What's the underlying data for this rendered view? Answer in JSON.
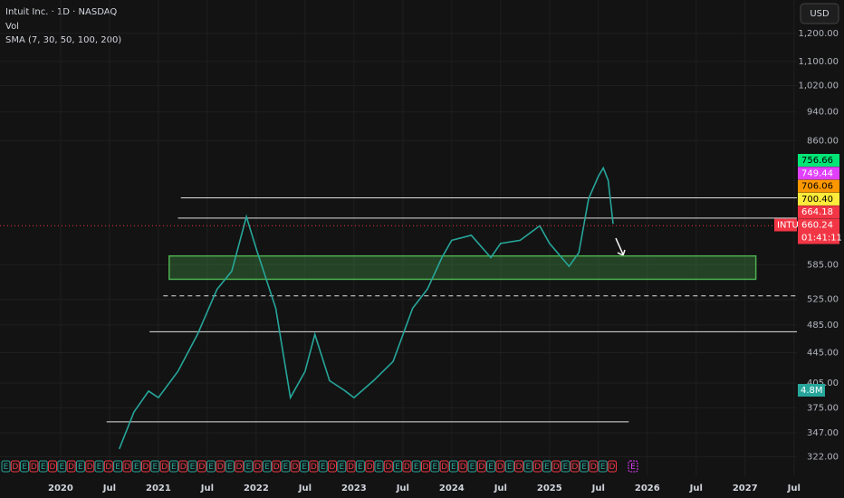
{
  "chart_data": {
    "type": "line",
    "title": "Intuit Inc. · 1D · NASDAQ",
    "indicators": [
      "Vol",
      "SMA (7, 30, 50, 100, 200)"
    ],
    "currency": "USD",
    "volume_label": "4.8M",
    "countdown": "01:41:11",
    "log_scale": true,
    "grid": true,
    "xlim": [
      2019.38,
      2027.53
    ],
    "ylim": [
      304,
      1331
    ],
    "xticks": [
      2020,
      {
        "value": 2020.5,
        "label": "Jul"
      },
      2021,
      {
        "value": 2021.5,
        "label": "Jul"
      },
      2022,
      {
        "value": 2022.5,
        "label": "Jul"
      },
      2023,
      {
        "value": 2023.5,
        "label": "Jul"
      },
      2024,
      {
        "value": 2024.5,
        "label": "Jul"
      },
      2025,
      {
        "value": 2025.5,
        "label": "Jul"
      },
      2026,
      {
        "value": 2026.5,
        "label": "Jul"
      },
      2027,
      {
        "value": 2027.5,
        "label": "Jul"
      }
    ],
    "yticks": [
      {
        "value": 1200,
        "label": "1,200.00"
      },
      {
        "value": 1100,
        "label": "1,100.00"
      },
      {
        "value": 1020,
        "label": "1,020.00"
      },
      {
        "value": 940,
        "label": "940.00"
      },
      {
        "value": 860,
        "label": "860.00"
      },
      {
        "value": 585,
        "label": "585.00"
      },
      {
        "value": 525,
        "label": "525.00"
      },
      {
        "value": 485,
        "label": "485.00"
      },
      {
        "value": 445,
        "label": "445.00"
      },
      {
        "value": 405,
        "label": "405.00"
      },
      {
        "value": 375,
        "label": "375.00"
      },
      {
        "value": 347,
        "label": "347.00"
      },
      {
        "value": 322,
        "label": "322.00"
      }
    ],
    "series": [
      {
        "name": "INTU",
        "color": "#26a69a",
        "x": [
          2020.6,
          2020.75,
          2020.9,
          2021.0,
          2021.2,
          2021.4,
          2021.6,
          2021.75,
          2021.9,
          2022.0,
          2022.2,
          2022.35,
          2022.5,
          2022.6,
          2022.75,
          2022.9,
          2023.0,
          2023.2,
          2023.4,
          2023.6,
          2023.75,
          2023.9,
          2024.0,
          2024.2,
          2024.4,
          2024.5,
          2024.7,
          2024.9,
          2025.0,
          2025.2,
          2025.3,
          2025.4,
          2025.5,
          2025.55,
          2025.6,
          2025.65
        ],
        "values": [
          330,
          370,
          395,
          387,
          420,
          471,
          542,
          573,
          679,
          615,
          511,
          387,
          420,
          471,
          408,
          396,
          387,
          408,
          433,
          511,
          542,
          598,
          631,
          641,
          598,
          625,
          631,
          660,
          625,
          582,
          607,
          718,
          770,
          790,
          760,
          664
        ]
      }
    ],
    "levels": [
      {
        "value": 720,
        "x": [
          2021.23,
          2027.53
        ]
      },
      {
        "value": 676,
        "x": [
          2021.2,
          2027.53
        ]
      },
      {
        "value": 531,
        "x": [
          2021.05,
          2027.53
        ],
        "dashed": true
      },
      {
        "value": 475,
        "x": [
          2020.91,
          2027.53
        ]
      },
      {
        "value": 359,
        "x": [
          2020.47,
          2025.81
        ]
      }
    ],
    "zone": {
      "low": 559,
      "high": 601,
      "x": [
        2021.11,
        2027.11
      ],
      "color": "#4caf50"
    },
    "price_labels": [
      {
        "value": 756.66,
        "label": "756.66",
        "color": "#00e676"
      },
      {
        "value": 749.44,
        "label": "749.44",
        "color": "#e040fb"
      },
      {
        "value": 706.06,
        "label": "706.06",
        "color": "#ff9800"
      },
      {
        "value": 700.4,
        "label": "700.40",
        "color": "#ffeb3b"
      },
      {
        "value": 664.18,
        "label": "664.18",
        "color": "#f23645"
      },
      {
        "value": 660.24,
        "label": "660.24",
        "color": "#f23645"
      }
    ],
    "event_labels": [
      "E",
      "D"
    ]
  }
}
